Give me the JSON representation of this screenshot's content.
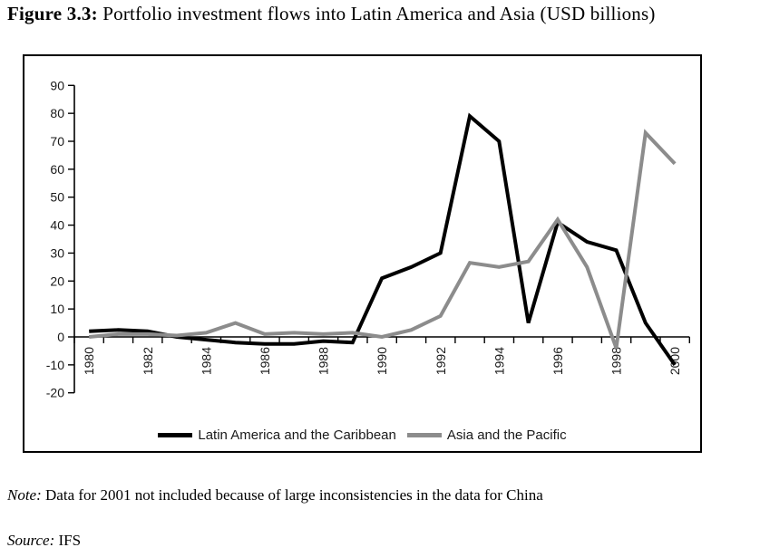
{
  "figure": {
    "label": "Figure 3.3:",
    "title": " Portfolio investment flows into Latin America and Asia (USD billions)"
  },
  "note": {
    "label": "Note:",
    "text": " Data for 2001 not included because of large inconsistencies in the data for China"
  },
  "source": {
    "label": "Source:",
    "text": " IFS"
  },
  "chart_data": {
    "type": "line",
    "title": "Portfolio investment flows into Latin America and Asia (USD billions)",
    "x": [
      1980,
      1981,
      1982,
      1983,
      1984,
      1985,
      1986,
      1987,
      1988,
      1989,
      1990,
      1991,
      1992,
      1993,
      1994,
      1995,
      1996,
      1997,
      1998,
      1999,
      2000
    ],
    "x_axis_tick_labels": [
      "1980",
      "1982",
      "1984",
      "1986",
      "1988",
      "1990",
      "1992",
      "1994",
      "1996",
      "1998",
      "2000"
    ],
    "series": [
      {
        "name": "Latin America and the Caribbean",
        "color": "#000000",
        "values": [
          2,
          2.5,
          2,
          0,
          -1,
          -2,
          -2.5,
          -2.5,
          -1.5,
          -2,
          21,
          25,
          30,
          79,
          70,
          5,
          41,
          34,
          31,
          5,
          -10
        ]
      },
      {
        "name": "Asia and the Pacific",
        "color": "#8c8c8c",
        "values": [
          0,
          1,
          1,
          0.5,
          1.5,
          5,
          1,
          1.5,
          1,
          1.5,
          0,
          2.5,
          7.5,
          26.5,
          25,
          27,
          42,
          25,
          -4,
          73,
          62
        ]
      }
    ],
    "xlabel": "",
    "ylabel": "",
    "ylim": [
      -20,
      90
    ],
    "y_tick_step": 10,
    "y_tick_labels": [
      "90",
      "80",
      "70",
      "60",
      "50",
      "40",
      "30",
      "20",
      "10",
      "0",
      "-10",
      "-20"
    ],
    "grid": false,
    "legend_position": "bottom-center-inside",
    "x_label_rotation": -90,
    "axis_color": "#000000",
    "tick_label_color": "#1a1a1a"
  }
}
